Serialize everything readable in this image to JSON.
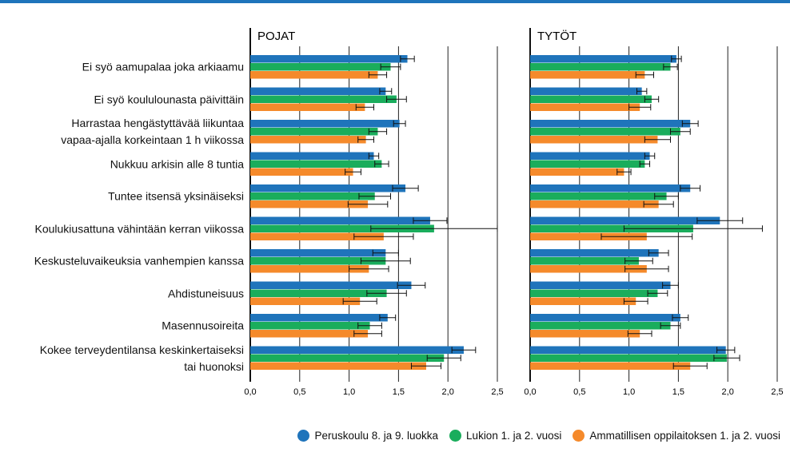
{
  "chart_data": {
    "type": "bar",
    "orientation": "horizontal",
    "categories": [
      "Ei syö aamupalaa joka arkiaamu",
      "Ei syö koululounasta päivittäin",
      "Harrastaa hengästyttävää liikuntaa\nvapaa-ajalla korkeintaan 1 h viikossa",
      "Nukkuu arkisin alle 8 tuntia",
      "Tuntee itsensä yksinäiseksi",
      "Koulukiusattuna vähintään kerran viikossa",
      "Keskusteluvaikeuksia vanhempien kanssa",
      "Ahdistuneisuus",
      "Masennusoireita",
      "Kokee terveydentilansa keskinkertaiseksi\ntai huonoksi"
    ],
    "legend": [
      {
        "name": "Peruskoulu 8. ja 9. luokka",
        "color": "#1f74bb"
      },
      {
        "name": "Lukion 1. ja 2. vuosi",
        "color": "#1aad5c"
      },
      {
        "name": "Ammatillisen oppilaitoksen 1. ja 2. vuosi",
        "color": "#f58a2b"
      }
    ],
    "grid": true,
    "panels": [
      {
        "title": "POJAT",
        "xlim": [
          0,
          2.5
        ],
        "xticks": [
          {
            "value": 0,
            "label": "0,0"
          },
          {
            "value": 0.5,
            "label": "0,5"
          },
          {
            "value": 1,
            "label": "1,0"
          },
          {
            "value": 1.5,
            "label": "1,5"
          },
          {
            "value": 2,
            "label": "2,0"
          },
          {
            "value": 2.5,
            "label": "2,5"
          }
        ],
        "series": [
          {
            "values": [
              1.59,
              1.37,
              1.51,
              1.25,
              1.57,
              1.82,
              1.37,
              1.63,
              1.39,
              2.16
            ],
            "errors": [
              0.07,
              0.06,
              0.06,
              0.05,
              0.13,
              0.17,
              0.13,
              0.14,
              0.08,
              0.12
            ]
          },
          {
            "values": [
              1.42,
              1.48,
              1.29,
              1.33,
              1.26,
              1.86,
              1.37,
              1.38,
              1.21,
              1.96
            ],
            "errors": [
              0.1,
              0.1,
              0.09,
              0.07,
              0.16,
              0.64,
              0.25,
              0.2,
              0.12,
              0.17
            ]
          },
          {
            "values": [
              1.29,
              1.16,
              1.17,
              1.04,
              1.19,
              1.35,
              1.2,
              1.11,
              1.19,
              1.78
            ],
            "errors": [
              0.09,
              0.09,
              0.08,
              0.08,
              0.2,
              0.3,
              0.2,
              0.17,
              0.14,
              0.15
            ]
          }
        ]
      },
      {
        "title": "TYTÖT",
        "xlim": [
          0,
          2.5
        ],
        "xticks": [
          {
            "value": 0,
            "label": "0,0"
          },
          {
            "value": 0.5,
            "label": "0,5"
          },
          {
            "value": 1,
            "label": "1,0"
          },
          {
            "value": 1.5,
            "label": "1,5"
          },
          {
            "value": 2,
            "label": "2,0"
          },
          {
            "value": 2.5,
            "label": "2,5"
          }
        ],
        "series": [
          {
            "values": [
              1.48,
              1.13,
              1.62,
              1.21,
              1.62,
              1.92,
              1.3,
              1.42,
              1.52,
              1.98
            ],
            "errors": [
              0.05,
              0.05,
              0.08,
              0.05,
              0.1,
              0.23,
              0.1,
              0.08,
              0.08,
              0.09
            ]
          },
          {
            "values": [
              1.42,
              1.23,
              1.52,
              1.16,
              1.38,
              1.65,
              1.1,
              1.29,
              1.42,
              1.99
            ],
            "errors": [
              0.07,
              0.07,
              0.1,
              0.05,
              0.12,
              0.7,
              0.14,
              0.1,
              0.1,
              0.13
            ]
          },
          {
            "values": [
              1.16,
              1.11,
              1.29,
              0.95,
              1.3,
              1.18,
              1.18,
              1.07,
              1.11,
              1.62
            ],
            "errors": [
              0.09,
              0.11,
              0.13,
              0.07,
              0.15,
              0.46,
              0.22,
              0.12,
              0.12,
              0.17
            ]
          }
        ]
      }
    ]
  }
}
